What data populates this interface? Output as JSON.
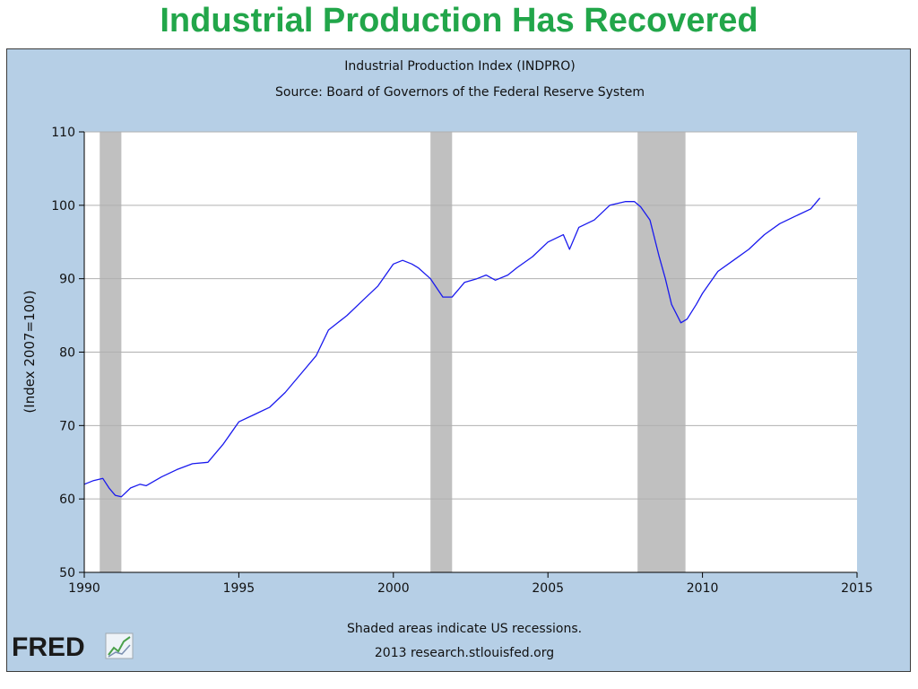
{
  "slide": {
    "title": "Industrial Production Has Recovered"
  },
  "footer": {
    "note": "Shaded areas indicate US recessions.",
    "credit": "2013 research.stlouisfed.org",
    "logo_text": "FRED"
  },
  "colors": {
    "title": "#22a64a",
    "panel_bg": "#b6cfe6",
    "plot_bg": "#ffffff",
    "series": "#1a1aee",
    "recession": "#c0c0c0",
    "grid": "#b0b0b0"
  },
  "chart_data": {
    "type": "line",
    "title": "Industrial Production Index (INDPRO)",
    "subtitle": "Source: Board of Governors of the Federal Reserve System",
    "xlabel": "",
    "ylabel": "(Index 2007=100)",
    "xlim": [
      1990,
      2015
    ],
    "ylim": [
      50,
      110
    ],
    "xticks": [
      1990,
      1995,
      2000,
      2005,
      2010,
      2015
    ],
    "yticks": [
      50,
      60,
      70,
      80,
      90,
      100,
      110
    ],
    "grid": true,
    "legend": "none",
    "recessions": [
      {
        "start": 1990.5,
        "end": 1991.2
      },
      {
        "start": 2001.2,
        "end": 2001.9
      },
      {
        "start": 2007.9,
        "end": 2009.45
      }
    ],
    "series": [
      {
        "x": [
          1990.0,
          1990.3,
          1990.6,
          1990.8,
          1991.0,
          1991.2,
          1991.5,
          1991.8,
          1992.0,
          1992.5,
          1993.0,
          1993.5,
          1994.0,
          1994.5,
          1995.0,
          1995.5,
          1996.0,
          1996.5,
          1997.0,
          1997.5,
          1997.9,
          1998.2,
          1998.5,
          1999.0,
          1999.5,
          2000.0,
          2000.3,
          2000.6,
          2000.8,
          2001.2,
          2001.6,
          2001.9,
          2002.3,
          2002.7,
          2003.0,
          2003.3,
          2003.7,
          2004.0,
          2004.5,
          2005.0,
          2005.5,
          2005.7,
          2006.0,
          2006.5,
          2007.0,
          2007.5,
          2007.8,
          2008.0,
          2008.3,
          2008.6,
          2008.8,
          2009.0,
          2009.3,
          2009.5,
          2009.8,
          2010.0,
          2010.5,
          2011.0,
          2011.5,
          2012.0,
          2012.5,
          2013.0,
          2013.5,
          2013.8
        ],
        "y": [
          62.0,
          62.5,
          62.8,
          61.5,
          60.5,
          60.3,
          61.5,
          62.0,
          61.8,
          63.0,
          64.0,
          64.8,
          65.0,
          67.5,
          70.5,
          71.5,
          72.5,
          74.5,
          77.0,
          79.5,
          83.0,
          84.0,
          85.0,
          87.0,
          89.0,
          92.0,
          92.5,
          92.0,
          91.5,
          90.0,
          87.5,
          87.5,
          89.5,
          90.0,
          90.5,
          89.8,
          90.5,
          91.5,
          93.0,
          95.0,
          96.0,
          94.0,
          97.0,
          98.0,
          100.0,
          100.5,
          100.5,
          99.8,
          98.0,
          93.0,
          90.0,
          86.5,
          84.0,
          84.5,
          86.5,
          88.0,
          91.0,
          92.5,
          94.0,
          96.0,
          97.5,
          98.5,
          99.5,
          101.0
        ]
      }
    ]
  }
}
